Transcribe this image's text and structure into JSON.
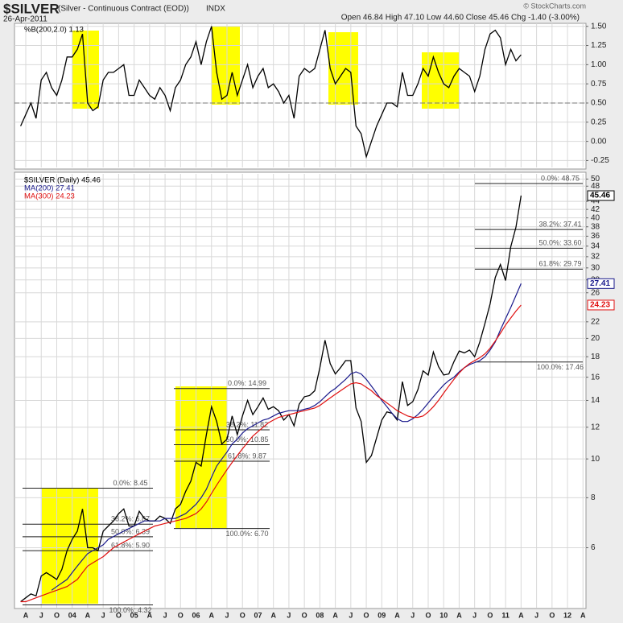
{
  "header": {
    "symbol": "$SILVER",
    "description": "(Silver - Continuous Contract (EOD))",
    "exchange": "INDX",
    "date": "26-Apr-2011",
    "quote": "Open 46.84  High 47.10  Low 44.60  Close 45.46  Chg -1.40 (-3.00%)",
    "logo": "© StockCharts.com"
  },
  "chart_data": [
    {
      "type": "line",
      "ylim": [
        -0.34,
        1.56
      ],
      "yticks": [
        {
          "value": -0.25,
          "label": "-0.25"
        },
        {
          "value": 0,
          "label": "0.00"
        },
        {
          "value": 0.25,
          "label": "0.25"
        },
        {
          "value": 0.5,
          "label": "0.50"
        },
        {
          "value": 0.75,
          "label": "0.75"
        },
        {
          "value": 1,
          "label": "1.00"
        },
        {
          "value": 1.25,
          "label": "1.25"
        },
        {
          "value": 1.5,
          "label": "1.50"
        }
      ],
      "reference_line": 0.5,
      "grid": true,
      "series": [
        {
          "name": "%B(200,2.0) 1.13",
          "color": "#000000",
          "values": [
            0.2,
            0.35,
            0.5,
            0.3,
            0.8,
            0.9,
            0.7,
            0.6,
            0.8,
            1.1,
            1.1,
            1.2,
            1.4,
            0.5,
            0.4,
            0.45,
            0.8,
            0.9,
            0.9,
            0.95,
            1.0,
            0.6,
            0.6,
            0.8,
            0.7,
            0.6,
            0.55,
            0.7,
            0.6,
            0.4,
            0.7,
            0.8,
            1.0,
            1.1,
            1.3,
            1.0,
            1.3,
            1.5,
            0.9,
            0.55,
            0.6,
            0.9,
            0.6,
            0.8,
            1.0,
            0.7,
            0.85,
            0.95,
            0.7,
            0.75,
            0.65,
            0.5,
            0.6,
            0.3,
            0.85,
            0.95,
            0.9,
            0.95,
            1.2,
            1.45,
            0.95,
            0.75,
            0.85,
            0.95,
            0.9,
            0.2,
            0.1,
            -0.2,
            0.0,
            0.2,
            0.35,
            0.5,
            0.5,
            0.45,
            0.9,
            0.6,
            0.6,
            0.75,
            0.95,
            0.85,
            1.1,
            0.9,
            0.75,
            0.7,
            0.85,
            0.95,
            0.9,
            0.85,
            0.65,
            0.85,
            1.2,
            1.4,
            1.45,
            1.35,
            1.0,
            1.2,
            1.05,
            1.13
          ]
        }
      ]
    },
    {
      "type": "line",
      "log_scale": true,
      "ylim": [
        4.25,
        52
      ],
      "grid": true,
      "yticks": [
        6,
        8,
        10,
        12,
        14,
        16,
        18,
        20,
        22,
        26,
        28,
        30,
        32,
        34,
        36,
        38,
        40,
        42,
        44,
        48,
        50
      ],
      "categories": [
        null,
        "A",
        null,
        null,
        "J",
        null,
        null,
        "O",
        null,
        null,
        "04",
        null,
        null,
        "A",
        null,
        null,
        "J",
        null,
        null,
        "O",
        null,
        null,
        "05",
        null,
        null,
        "A",
        null,
        null,
        "J",
        null,
        null,
        "O",
        null,
        null,
        "06",
        null,
        null,
        "A",
        null,
        null,
        "J",
        null,
        null,
        "O",
        null,
        null,
        "07",
        null,
        null,
        "A",
        null,
        null,
        "J",
        null,
        null,
        "O",
        null,
        null,
        "08",
        null,
        null,
        "A",
        null,
        null,
        "J",
        null,
        null,
        "O",
        null,
        null,
        "09",
        null,
        null,
        "A",
        null,
        null,
        "J",
        null,
        null,
        "O",
        null,
        null,
        "10",
        null,
        null,
        "A",
        null,
        null,
        "J",
        null,
        null,
        "O",
        null,
        null,
        "11",
        null,
        null,
        "A",
        null,
        null,
        "J",
        null,
        null,
        "O",
        null,
        null,
        "12",
        null,
        null,
        "A"
      ],
      "series": [
        {
          "name": "$SILVER (Daily) 45.46",
          "color": "#000000",
          "values": [
            4.4,
            4.5,
            4.6,
            4.55,
            5.1,
            5.2,
            5.1,
            5.0,
            5.3,
            5.9,
            6.3,
            6.6,
            7.5,
            6.0,
            6.0,
            5.9,
            6.6,
            6.8,
            7.0,
            7.3,
            7.5,
            6.8,
            6.8,
            7.4,
            7.1,
            7.0,
            7.0,
            7.2,
            7.1,
            6.9,
            7.5,
            7.7,
            8.3,
            8.8,
            9.8,
            9.6,
            11.5,
            13.5,
            12.4,
            10.9,
            11.2,
            12.8,
            11.5,
            12.8,
            14.0,
            12.9,
            13.5,
            14.2,
            13.3,
            13.5,
            13.2,
            12.5,
            12.9,
            12.1,
            13.7,
            14.3,
            14.4,
            14.8,
            16.9,
            19.8,
            17.3,
            16.3,
            16.9,
            17.6,
            17.6,
            13.4,
            12.4,
            9.8,
            10.2,
            11.3,
            12.5,
            13.1,
            13.0,
            12.5,
            15.6,
            13.6,
            13.9,
            14.9,
            16.6,
            16.2,
            18.5,
            17.0,
            16.2,
            16.3,
            17.5,
            18.6,
            18.4,
            18.7,
            18.0,
            19.6,
            21.8,
            24.4,
            28.4,
            30.6,
            27.9,
            33.9,
            37.9,
            45.46,
            null,
            null,
            null,
            null,
            null,
            null,
            null,
            null,
            null,
            null,
            null,
            null
          ]
        },
        {
          "name": "MA(200) 27.41",
          "color": "#1a1a8c",
          "values": [
            null,
            null,
            null,
            null,
            null,
            null,
            4.7,
            4.8,
            4.9,
            5.0,
            5.2,
            5.4,
            5.6,
            5.8,
            5.9,
            6.0,
            6.1,
            6.3,
            6.4,
            6.5,
            6.6,
            6.7,
            6.8,
            6.9,
            7.0,
            7.0,
            7.0,
            7.0,
            7.1,
            7.1,
            7.1,
            7.2,
            7.3,
            7.5,
            7.7,
            8.0,
            8.4,
            9.0,
            9.6,
            10.0,
            10.4,
            10.9,
            11.2,
            11.6,
            11.9,
            12.1,
            12.3,
            12.5,
            12.6,
            12.8,
            13.0,
            13.1,
            13.2,
            13.2,
            13.2,
            13.3,
            13.4,
            13.6,
            13.9,
            14.3,
            14.7,
            15.0,
            15.4,
            15.8,
            16.3,
            16.5,
            16.3,
            15.8,
            15.2,
            14.6,
            14.0,
            13.5,
            13.0,
            12.6,
            12.4,
            12.4,
            12.6,
            12.9,
            13.3,
            13.8,
            14.3,
            14.8,
            15.3,
            15.7,
            16.0,
            16.5,
            16.9,
            17.2,
            17.4,
            17.6,
            18.0,
            18.7,
            19.6,
            21.0,
            22.4,
            23.9,
            25.6,
            27.41,
            null,
            null,
            null,
            null,
            null,
            null,
            null,
            null,
            null,
            null,
            null,
            null
          ]
        },
        {
          "name": "MA(300) 24.23",
          "color": "#e01010",
          "values": [
            4.4,
            4.4,
            4.45,
            4.5,
            4.55,
            4.6,
            4.65,
            4.7,
            4.75,
            4.8,
            4.9,
            5.0,
            5.2,
            5.4,
            5.5,
            5.6,
            5.7,
            5.85,
            6.0,
            6.1,
            6.2,
            6.3,
            6.4,
            6.5,
            6.6,
            6.7,
            6.8,
            6.85,
            6.9,
            6.95,
            7.0,
            7.05,
            7.1,
            7.2,
            7.3,
            7.5,
            7.8,
            8.2,
            8.6,
            9.0,
            9.4,
            9.8,
            10.2,
            10.6,
            11.0,
            11.4,
            11.7,
            12.0,
            12.3,
            12.5,
            12.7,
            12.8,
            12.9,
            13.0,
            13.1,
            13.2,
            13.3,
            13.4,
            13.6,
            13.9,
            14.2,
            14.5,
            14.8,
            15.1,
            15.4,
            15.5,
            15.4,
            15.1,
            14.8,
            14.4,
            14.1,
            13.8,
            13.5,
            13.2,
            13.0,
            12.8,
            12.7,
            12.7,
            12.8,
            13.1,
            13.5,
            14.0,
            14.6,
            15.2,
            15.8,
            16.4,
            16.9,
            17.3,
            17.6,
            17.9,
            18.3,
            18.9,
            19.7,
            20.6,
            21.6,
            22.5,
            23.4,
            24.23,
            null,
            null,
            null,
            null,
            null,
            null,
            null,
            null,
            null,
            null,
            null,
            null
          ]
        }
      ],
      "fibonacci": [
        {
          "levels": [
            {
              "value": 8.45,
              "label": "0.0%: 8.45"
            },
            {
              "value": 6.87,
              "label": "38.2%: 6.87"
            },
            {
              "value": 6.39,
              "label": "50.0%: 6.39"
            },
            {
              "value": 5.9,
              "label": "61.8%: 5.90"
            },
            {
              "value": 4.32,
              "label": "100.0%: 4.32"
            }
          ]
        },
        {
          "levels": [
            {
              "value": 14.99,
              "label": "0.0%: 14.99"
            },
            {
              "value": 11.82,
              "label": "38.2%: 11.82"
            },
            {
              "value": 10.85,
              "label": "50.0%: 10.85"
            },
            {
              "value": 9.87,
              "label": "61.8%: 9.87"
            },
            {
              "value": 6.7,
              "label": "100.0%: 6.70"
            }
          ]
        },
        {
          "levels": [
            {
              "value": 48.75,
              "label": "0.0%: 48.75"
            },
            {
              "value": 37.41,
              "label": "38.2%: 37.41"
            },
            {
              "value": 33.6,
              "label": "50.0%: 33.60"
            },
            {
              "value": 29.79,
              "label": "61.8%: 29.79"
            },
            {
              "value": 17.46,
              "label": "100.0%: 17.46"
            }
          ]
        }
      ]
    }
  ]
}
